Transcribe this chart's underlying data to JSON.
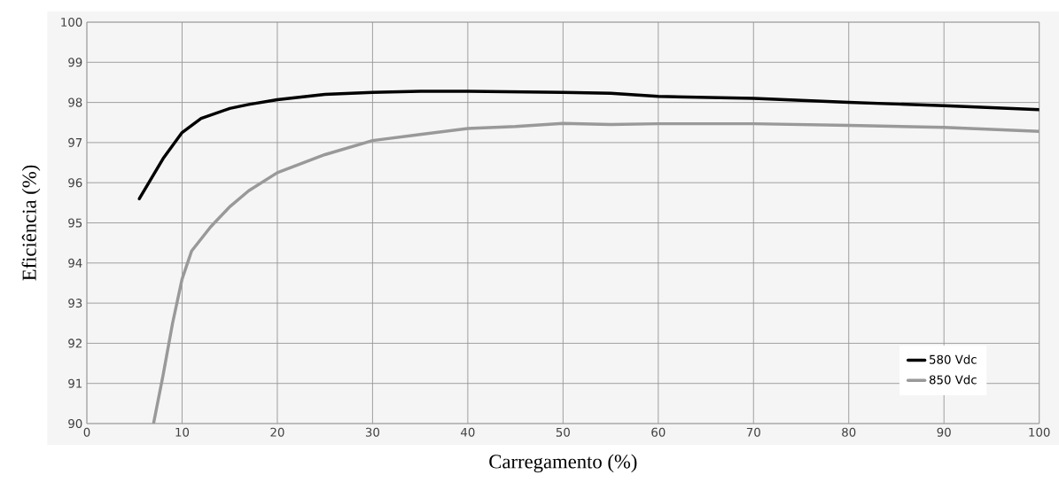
{
  "chart_data": {
    "type": "line",
    "xlabel": "Carregamento (%)",
    "ylabel": "Eficiência (%)",
    "xlim": [
      0,
      100
    ],
    "xticks": [
      0,
      10,
      20,
      30,
      40,
      50,
      60,
      70,
      80,
      90,
      100
    ],
    "ylim": [
      90,
      100
    ],
    "yticks": [
      90,
      91,
      92,
      93,
      94,
      95,
      96,
      97,
      98,
      99,
      100
    ],
    "grid": true,
    "legend": "bottom right",
    "marker": "none",
    "line_style": "solid",
    "series": [
      {
        "name": "580 Vdc",
        "color": "#000000",
        "x": [
          5.5,
          8,
          10,
          12,
          15,
          17,
          20,
          25,
          30,
          35,
          40,
          50,
          55,
          60,
          70,
          80,
          90,
          100
        ],
        "values": [
          95.6,
          96.6,
          97.25,
          97.6,
          97.85,
          97.95,
          98.07,
          98.2,
          98.25,
          98.28,
          98.28,
          98.25,
          98.23,
          98.15,
          98.1,
          98.0,
          97.92,
          97.82
        ]
      },
      {
        "name": "850 Vdc",
        "color": "#999999",
        "x": [
          7,
          8,
          9,
          10,
          11,
          13,
          15,
          17,
          20,
          25,
          30,
          35,
          40,
          45,
          50,
          55,
          60,
          70,
          80,
          90,
          100
        ],
        "values": [
          90.0,
          91.2,
          92.5,
          93.6,
          94.3,
          94.9,
          95.4,
          95.8,
          96.25,
          96.7,
          97.05,
          97.2,
          97.35,
          97.4,
          97.48,
          97.45,
          97.47,
          97.47,
          97.43,
          97.38,
          97.28
        ]
      }
    ]
  }
}
